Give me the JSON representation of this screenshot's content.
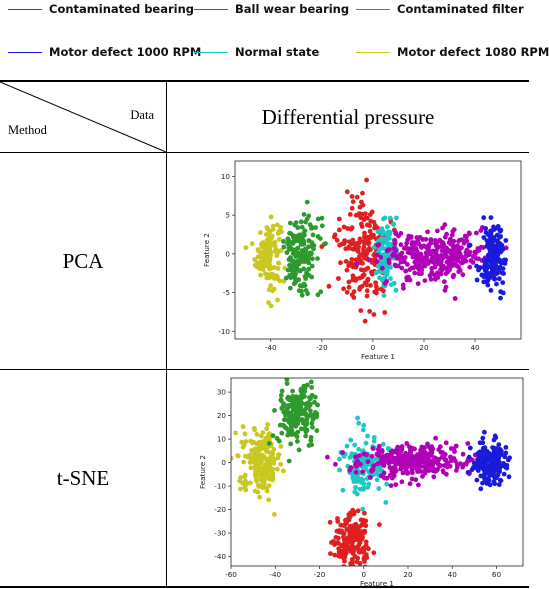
{
  "legend": {
    "items": [
      {
        "label": "Contaminated bearing",
        "color": "#b000b8"
      },
      {
        "label": "Ball wear bearing",
        "color": "#e02020"
      },
      {
        "label": "Contaminated filter",
        "color": "#2e9a2e"
      },
      {
        "label": "Motor defect 1000 RPM",
        "color": "#1a1adb"
      },
      {
        "label": "Normal state",
        "color": "#1ec6c6"
      },
      {
        "label": "Motor defect 1080 RPM",
        "color": "#c8c820"
      }
    ]
  },
  "table": {
    "header_data": "Data",
    "header_method": "Method",
    "column_title": "Differential pressure",
    "rows": [
      {
        "method": "PCA"
      },
      {
        "method": "t-SNE"
      }
    ]
  },
  "chart_data": [
    {
      "type": "scatter",
      "title": "",
      "xlabel": "Feature 1",
      "ylabel": "Feature 2",
      "xlim": [
        -54,
        58
      ],
      "ylim": [
        -11,
        12
      ],
      "xticks": [
        -40,
        -20,
        0,
        20,
        40
      ],
      "yticks": [
        -10,
        -5,
        0,
        5,
        10
      ],
      "grid": false,
      "series": [
        {
          "name": "Motor defect 1080 RPM",
          "color": "#c8c820",
          "center": [
            -41,
            0
          ],
          "spread": [
            2.5,
            2.2
          ],
          "n": 130
        },
        {
          "name": "Contaminated filter",
          "color": "#2e9a2e",
          "center": [
            -28,
            0
          ],
          "spread": [
            3.5,
            2.3
          ],
          "n": 170
        },
        {
          "name": "Ball wear bearing",
          "color": "#e02020",
          "center": [
            -3,
            0
          ],
          "spread": [
            5.5,
            3.6
          ],
          "n": 200
        },
        {
          "name": "Normal state",
          "color": "#1ec6c6",
          "center": [
            5,
            0
          ],
          "spread": [
            2,
            2.2
          ],
          "n": 110
        },
        {
          "name": "Contaminated bearing",
          "color": "#b000b8",
          "center": [
            24,
            0
          ],
          "spread": [
            11,
            1.7
          ],
          "n": 320
        },
        {
          "name": "Motor defect 1000 RPM",
          "color": "#1a1adb",
          "center": [
            47,
            -0.5
          ],
          "spread": [
            2.4,
            2.0
          ],
          "n": 170
        }
      ]
    },
    {
      "type": "scatter",
      "title": "",
      "xlabel": "Feature 1",
      "ylabel": "Feature 2",
      "xlim": [
        -60,
        72
      ],
      "ylim": [
        -44,
        36
      ],
      "xticks": [
        -60,
        -40,
        -20,
        0,
        20,
        40,
        60
      ],
      "yticks": [
        -40,
        -30,
        -20,
        -10,
        0,
        10,
        20,
        30
      ],
      "grid": false,
      "series": [
        {
          "name": "Motor defect 1080 RPM",
          "color": "#c8c820",
          "center": [
            -46,
            1
          ],
          "spread": [
            4.5,
            6.5
          ],
          "n": 200
        },
        {
          "name": "Contaminated filter",
          "color": "#2e9a2e",
          "center": [
            -30,
            21
          ],
          "spread": [
            4.2,
            6.0
          ],
          "n": 210
        },
        {
          "name": "Ball wear bearing",
          "color": "#e02020",
          "center": [
            -5,
            -33
          ],
          "spread": [
            4.2,
            5.5
          ],
          "n": 200
        },
        {
          "name": "Normal state",
          "color": "#1ec6c6",
          "center": [
            0,
            0
          ],
          "spread": [
            5,
            6
          ],
          "n": 140
        },
        {
          "name": "Contaminated bearing",
          "color": "#b000b8",
          "center": [
            22,
            1
          ],
          "spread": [
            12,
            3.5
          ],
          "n": 320
        },
        {
          "name": "Motor defect 1000 RPM",
          "color": "#1a1adb",
          "center": [
            57,
            0
          ],
          "spread": [
            4,
            4.2
          ],
          "n": 200
        }
      ]
    }
  ]
}
